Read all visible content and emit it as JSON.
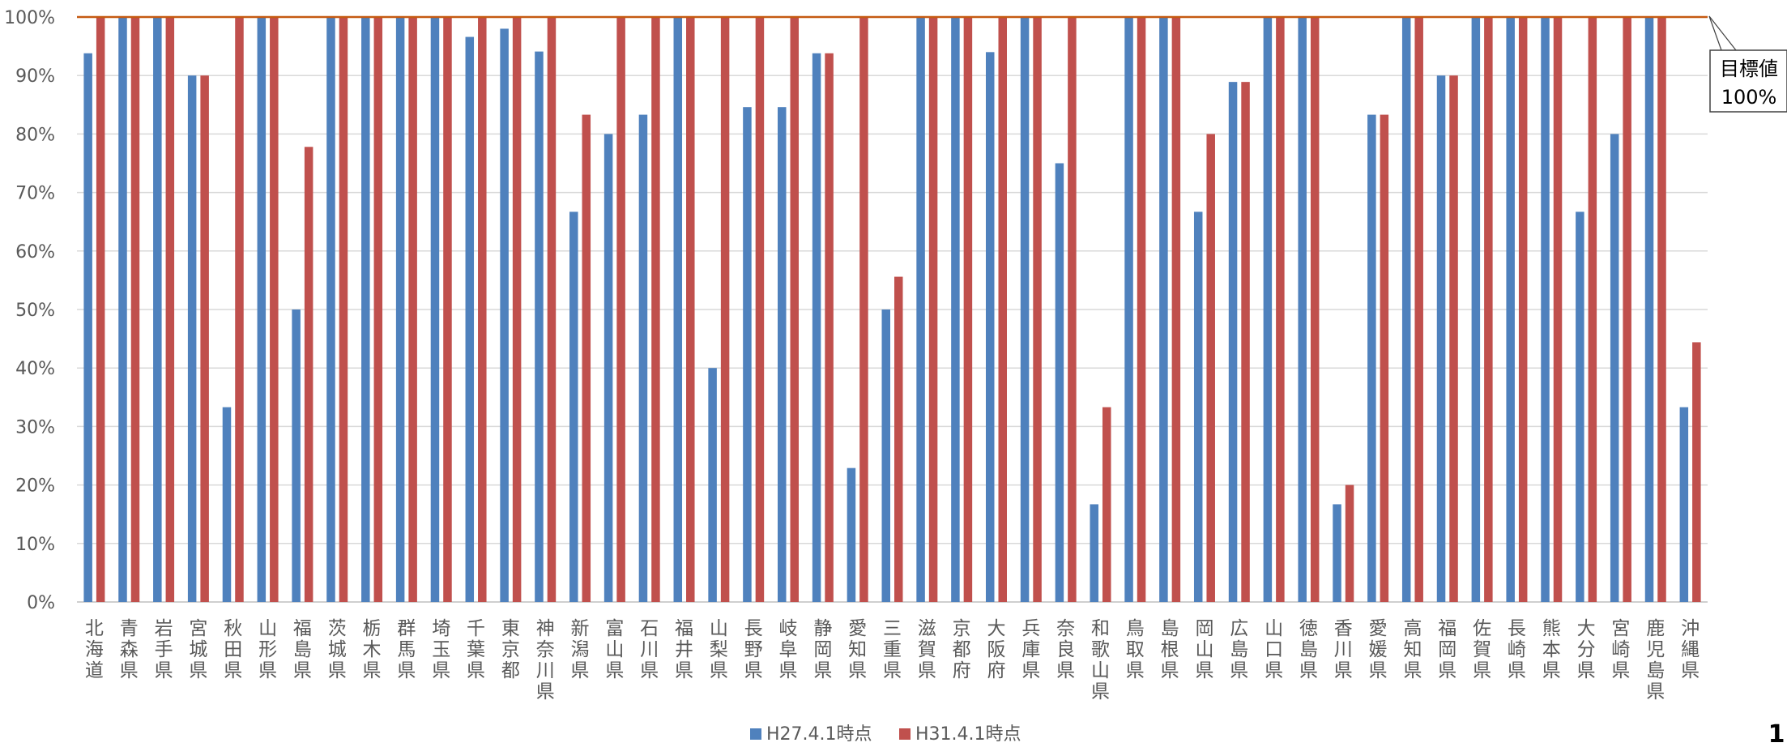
{
  "chart_data": {
    "type": "bar",
    "categories": [
      "北海道",
      "青森県",
      "岩手県",
      "宮城県",
      "秋田県",
      "山形県",
      "福島県",
      "茨城県",
      "栃木県",
      "群馬県",
      "埼玉県",
      "千葉県",
      "東京都",
      "神奈川県",
      "新潟県",
      "富山県",
      "石川県",
      "福井県",
      "山梨県",
      "長野県",
      "岐阜県",
      "静岡県",
      "愛知県",
      "三重県",
      "滋賀県",
      "京都府",
      "大阪府",
      "兵庫県",
      "奈良県",
      "和歌山県",
      "鳥取県",
      "島根県",
      "岡山県",
      "広島県",
      "山口県",
      "徳島県",
      "香川県",
      "愛媛県",
      "高知県",
      "福岡県",
      "佐賀県",
      "長崎県",
      "熊本県",
      "大分県",
      "宮崎県",
      "鹿児島県",
      "沖縄県"
    ],
    "series": [
      {
        "name": "H27.4.1時点",
        "color": "#4f81bd",
        "values": [
          93.8,
          100,
          100,
          90,
          33.3,
          100,
          50,
          100,
          100,
          100,
          100,
          96.6,
          98,
          94.1,
          66.7,
          80,
          83.3,
          100,
          40,
          84.6,
          84.6,
          93.8,
          22.9,
          50,
          100,
          100,
          94,
          100,
          75,
          16.7,
          100,
          100,
          66.7,
          88.9,
          100,
          100,
          16.7,
          83.3,
          100,
          90,
          100,
          100,
          100,
          66.7,
          80,
          100,
          33.3
        ]
      },
      {
        "name": "H31.4.1時点",
        "color": "#c0504d",
        "values": [
          100,
          100,
          100,
          90,
          100,
          100,
          77.8,
          100,
          100,
          100,
          100,
          100,
          100,
          100,
          83.3,
          100,
          100,
          100,
          100,
          100,
          100,
          93.8,
          100,
          55.6,
          100,
          100,
          100,
          100,
          100,
          33.3,
          100,
          100,
          80,
          88.9,
          100,
          100,
          20,
          83.3,
          100,
          90,
          100,
          100,
          100,
          100,
          100,
          100,
          44.4
        ]
      }
    ],
    "yticks": [
      "0%",
      "10%",
      "20%",
      "30%",
      "40%",
      "50%",
      "60%",
      "70%",
      "80%",
      "90%",
      "100%"
    ],
    "ylim": [
      0,
      100
    ],
    "grid": true,
    "legend_position": "bottom",
    "target_line": {
      "value": 100,
      "color": "#c55a11"
    },
    "callout": {
      "line1": "目標値",
      "line2": "100%"
    },
    "page_number": "1"
  }
}
